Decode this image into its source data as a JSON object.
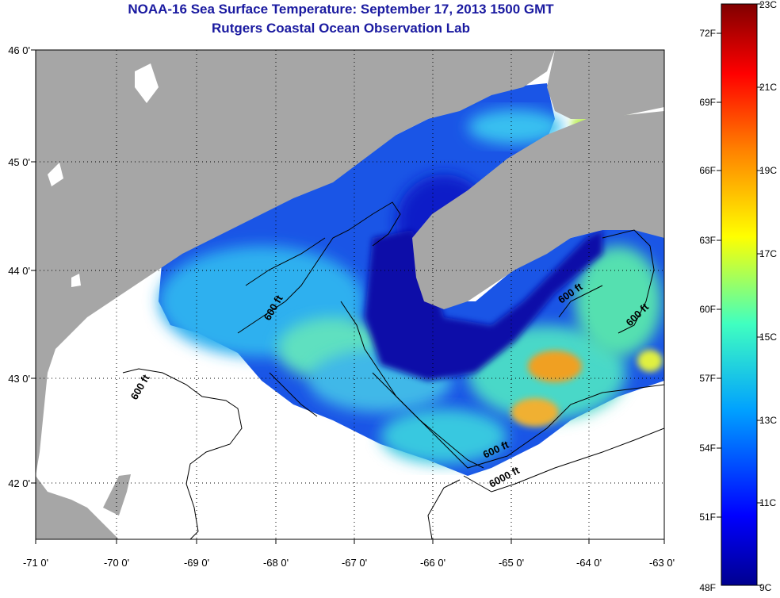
{
  "title_line1": "NOAA-16 Sea Surface Temperature:  September 17, 2013 1500 GMT",
  "title_line2": "Rutgers Coastal Ocean Observation Lab",
  "lon_ticks": [
    "-71 0'",
    "-70 0'",
    "-69 0'",
    "-68 0'",
    "-67 0'",
    "-66 0'",
    "-65 0'",
    "-64 0'",
    "-63 0'"
  ],
  "lat_ticks": [
    "46 0'",
    "45 0'",
    "44 0'",
    "43 0'",
    "42 0'"
  ],
  "contour_labels": [
    "600 ft",
    "600 ft",
    "600 ft",
    "600 ft",
    "6000 ft"
  ],
  "colorbar": {
    "fahrenheit": [
      "72F",
      "69F",
      "66F",
      "63F",
      "60F",
      "57F",
      "54F",
      "51F",
      "48F"
    ],
    "celsius": [
      "23C",
      "21C",
      "19C",
      "17C",
      "15C",
      "13C",
      "11C",
      "9C"
    ],
    "colors": [
      "#00008f",
      "#0000ff",
      "#00a0ff",
      "#40ffc0",
      "#ffff00",
      "#ff8000",
      "#ff0000",
      "#800000"
    ]
  },
  "colors": {
    "land": "#a6a6a6",
    "no_data": "#ffffff",
    "title": "#1a1aa0"
  }
}
